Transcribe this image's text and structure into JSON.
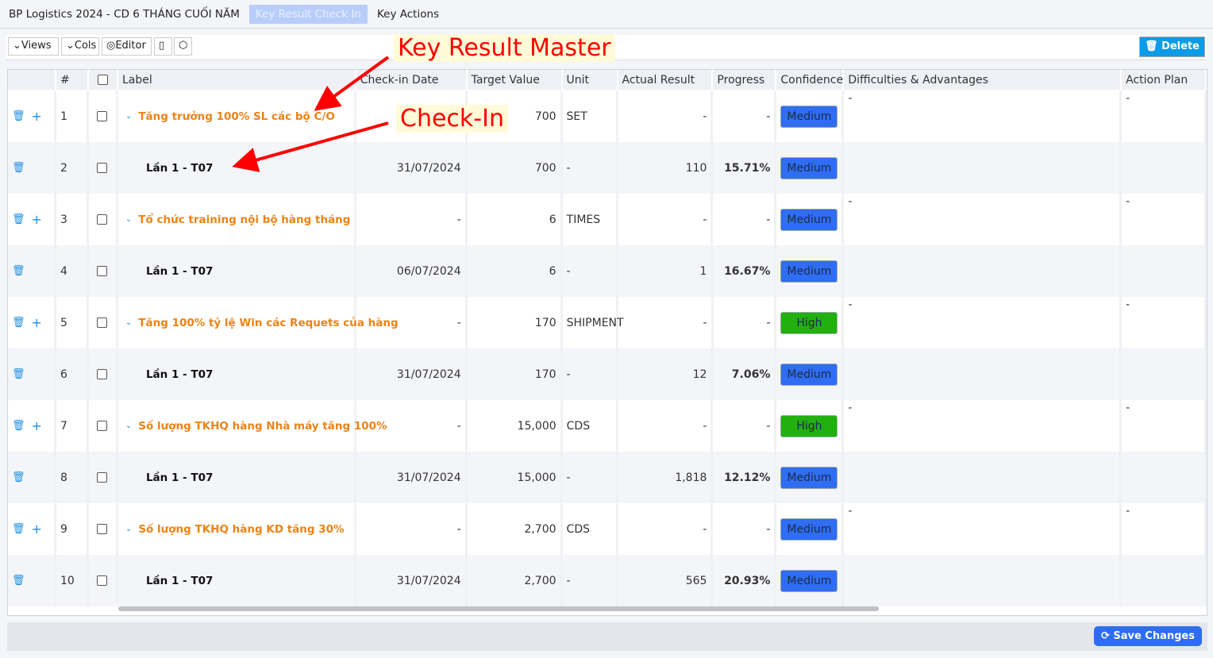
{
  "nav": {
    "title": "BP Logistics 2024 - CD 6 THÁNG CUỐI NĂM",
    "tabs": [
      "Key Result Check In",
      "Key Actions"
    ]
  },
  "toolbar": {
    "views": "⌄Views",
    "cols": "⌄Cols",
    "editor": "◎Editor",
    "book_icon": "book-icon",
    "cube_icon": "cube-icon",
    "delete": "🗑 Delete"
  },
  "columns": [
    "#",
    "",
    "Label",
    "Check-in Date",
    "Target Value",
    "Unit",
    "Actual Result",
    "Progress",
    "Confidence",
    "Difficulties & Advantages",
    "Action Plan"
  ],
  "rows": [
    {
      "n": "1",
      "type": "master",
      "label": "Tăng trưởng 100% SL các bộ C/O",
      "date": "",
      "target": "700",
      "unit": "SET",
      "actual": "-",
      "progress": "-",
      "confidence": "Medium",
      "diff": "-",
      "plan": "-"
    },
    {
      "n": "2",
      "type": "checkin",
      "label": "Lần 1 - T07",
      "date": "31/07/2024",
      "target": "700",
      "unit": "-",
      "actual": "110",
      "progress": "15.71%",
      "confidence": "Medium",
      "diff": "",
      "plan": ""
    },
    {
      "n": "3",
      "type": "master",
      "label": "Tổ chức training nội bộ hàng tháng",
      "date": "-",
      "target": "6",
      "unit": "TIMES",
      "actual": "-",
      "progress": "-",
      "confidence": "Medium",
      "diff": "-",
      "plan": "-"
    },
    {
      "n": "4",
      "type": "checkin",
      "label": "Lần 1 - T07",
      "date": "06/07/2024",
      "target": "6",
      "unit": "-",
      "actual": "1",
      "progress": "16.67%",
      "confidence": "Medium",
      "diff": "",
      "plan": ""
    },
    {
      "n": "5",
      "type": "master",
      "label": "Tăng 100% tỷ lệ Win các Requets của hàng",
      "date": "-",
      "target": "170",
      "unit": "SHIPMENT",
      "actual": "-",
      "progress": "-",
      "confidence": "High",
      "diff": "-",
      "plan": "-"
    },
    {
      "n": "6",
      "type": "checkin",
      "label": "Lần 1 - T07",
      "date": "31/07/2024",
      "target": "170",
      "unit": "-",
      "actual": "12",
      "progress": "7.06%",
      "confidence": "Medium",
      "diff": "",
      "plan": ""
    },
    {
      "n": "7",
      "type": "master",
      "label": "Số lượng TKHQ hàng Nhà máy tăng 100%",
      "date": "-",
      "target": "15,000",
      "unit": "CDS",
      "actual": "-",
      "progress": "-",
      "confidence": "High",
      "diff": "-",
      "plan": "-"
    },
    {
      "n": "8",
      "type": "checkin",
      "label": "Lần 1 - T07",
      "date": "31/07/2024",
      "target": "15,000",
      "unit": "-",
      "actual": "1,818",
      "progress": "12.12%",
      "confidence": "Medium",
      "diff": "",
      "plan": ""
    },
    {
      "n": "9",
      "type": "master",
      "label": "Số lượng TKHQ hàng KD tăng 30%",
      "date": "-",
      "target": "2,700",
      "unit": "CDS",
      "actual": "-",
      "progress": "-",
      "confidence": "Medium",
      "diff": "-",
      "plan": "-"
    },
    {
      "n": "10",
      "type": "checkin",
      "label": "Lần 1 - T07",
      "date": "31/07/2024",
      "target": "2,700",
      "unit": "-",
      "actual": "565",
      "progress": "20.93%",
      "confidence": "Medium",
      "diff": "",
      "plan": ""
    }
  ],
  "confidence_colors": {
    "Medium": "#2f6df2",
    "High": "#22b00f"
  },
  "annotations": {
    "master": "Key Result Master",
    "checkin": "Check-In"
  },
  "footer": {
    "save": "⟳ Save Changes"
  }
}
